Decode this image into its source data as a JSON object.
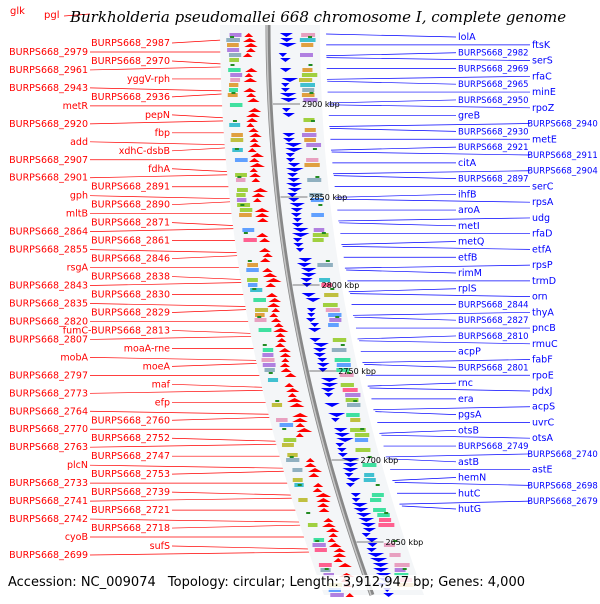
{
  "title": "Burkholderia pseudomallei 668 chromosome I, complete genome",
  "top_labels": [
    {
      "text": "glk",
      "side": "left"
    },
    {
      "text": "pgl",
      "side": "left"
    }
  ],
  "footer": {
    "accession": "Accession: NC_009074",
    "topology": "Topology: circular;",
    "length": "Length: 3,912,947 bp;",
    "genes": "Genes: 4,000"
  },
  "scale_ticks": [
    "2900 kbp",
    "2850 kbp",
    "2800 kbp",
    "2750 kbp",
    "2700 kbp",
    "2650 kbp"
  ],
  "colors": {
    "forward_strand": "#ff0000",
    "reverse_strand": "#0000ff",
    "backbone": "#888888",
    "tick": "#228b22"
  },
  "left_genes": [
    "BURPS668_2987",
    "BURPS668_2979",
    "BURPS668_2970",
    "BURPS668_2961",
    "yggV-rph",
    "BURPS668_2943",
    "BURPS668_2936",
    "metR",
    "pepN",
    "BURPS668_2920",
    "fbp",
    "add",
    "xdhC-dsbB",
    "BURPS668_2907",
    "fdhA",
    "BURPS668_2901",
    "BURPS668_2891",
    "gph",
    "BURPS668_2890",
    "mltB",
    "BURPS668_2871",
    "BURPS668_2864",
    "BURPS668_2861",
    "BURPS668_2855",
    "BURPS668_2846",
    "rsgA",
    "BURPS668_2838",
    "BURPS668_2843",
    "BURPS668_2830",
    "BURPS668_2835",
    "BURPS668_2829",
    "BURPS668_2820",
    "fumC-BURPS668_2813",
    "BURPS668_2807",
    "moaA-rne",
    "mobA",
    "moeA",
    "BURPS668_2797",
    "maf",
    "BURPS668_2773",
    "efp",
    "BURPS668_2764",
    "BURPS668_2760",
    "BURPS668_2770",
    "BURPS668_2752",
    "BURPS668_2763",
    "BURPS668_2747",
    "plcN",
    "BURPS668_2753",
    "BURPS668_2733",
    "BURPS668_2739",
    "BURPS668_2741",
    "BURPS668_2721",
    "BURPS668_2742",
    "BURPS668_2718",
    "cyoB",
    "sufS",
    "BURPS668_2699"
  ],
  "right_genes": [
    "lolA",
    "ftsK",
    "BURPS668_2982",
    "serS",
    "BURPS668_2969",
    "rfaC",
    "BURPS668_2965",
    "minE",
    "BURPS668_2950",
    "rpoZ",
    "greB",
    "BURPS668_2940",
    "BURPS668_2930",
    "metE",
    "BURPS668_2921",
    "BURPS668_2911",
    "citA",
    "BURPS668_2904",
    "BURPS668_2897",
    "serC",
    "ihfB",
    "rpsA",
    "aroA",
    "udg",
    "metI",
    "rfaD",
    "metQ",
    "etfA",
    "etfB",
    "rpsP",
    "rimM",
    "trmD",
    "rplS",
    "orn",
    "BURPS668_2844",
    "thyA",
    "BURPS668_2827",
    "pncB",
    "BURPS668_2810",
    "rmuC",
    "acpP",
    "fabF",
    "BURPS668_2801",
    "rpoE",
    "rnc",
    "pdxJ",
    "era",
    "acpS",
    "pgsA",
    "uvrC",
    "otsB",
    "otsA",
    "BURPS668_2749",
    "BURPS668_2740",
    "astB",
    "astE",
    "hemN",
    "BURPS668_2698",
    "hutC",
    "BURPS668_2679",
    "hutG"
  ]
}
